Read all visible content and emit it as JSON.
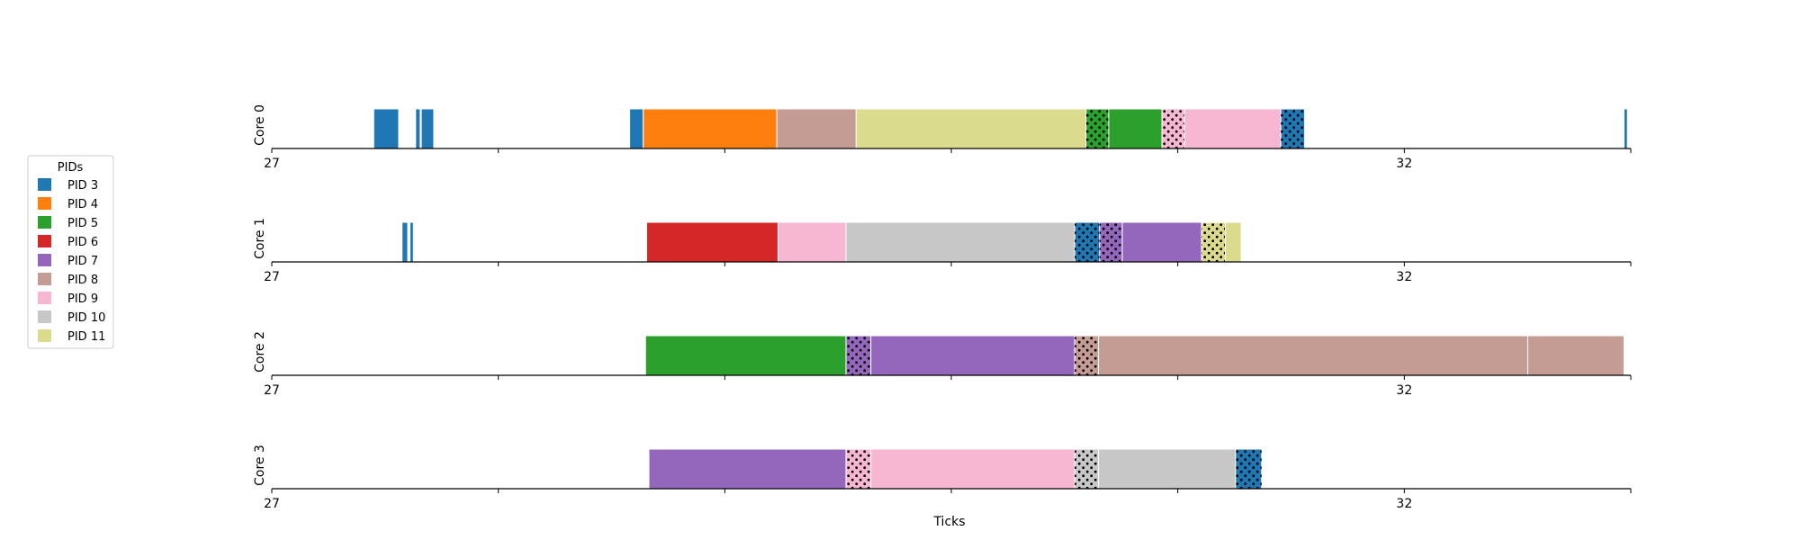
{
  "chart_data": {
    "type": "gantt",
    "xlabel": "Ticks",
    "xlim": [
      27,
      33
    ],
    "x_ticks": [
      27,
      32
    ],
    "x_tick_labels": [
      "27",
      "32"
    ],
    "grid": false,
    "legend": {
      "title": "PIDs",
      "placement": "left",
      "entries": [
        {
          "label": "PID 3",
          "color": "#1f77b4"
        },
        {
          "label": "PID 4",
          "color": "#ff7f0e"
        },
        {
          "label": "PID 5",
          "color": "#2ca02c"
        },
        {
          "label": "PID 6",
          "color": "#d62728"
        },
        {
          "label": "PID 7",
          "color": "#9467bd"
        },
        {
          "label": "PID 8",
          "color": "#c49c94"
        },
        {
          "label": "PID 9",
          "color": "#f7b6d2"
        },
        {
          "label": "PID 10",
          "color": "#c7c7c7"
        },
        {
          "label": "PID 11",
          "color": "#dbdb8d"
        }
      ]
    },
    "pid_colors": {
      "3": "#1f77b4",
      "4": "#ff7f0e",
      "5": "#2ca02c",
      "6": "#d62728",
      "7": "#9467bd",
      "8": "#c49c94",
      "9": "#f7b6d2",
      "10": "#c7c7c7",
      "11": "#dbdb8d"
    },
    "cores": [
      {
        "label": "Core 0",
        "segments": [
          {
            "pid": 3,
            "start": 27.45,
            "end": 27.56,
            "hatched": false
          },
          {
            "pid": 3,
            "start": 27.635,
            "end": 27.655,
            "hatched": false
          },
          {
            "pid": 3,
            "start": 27.66,
            "end": 27.715,
            "hatched": false
          },
          {
            "pid": 3,
            "start": 28.58,
            "end": 28.64,
            "hatched": false
          },
          {
            "pid": 4,
            "start": 28.64,
            "end": 29.23,
            "hatched": false
          },
          {
            "pid": 8,
            "start": 29.23,
            "end": 29.58,
            "hatched": false
          },
          {
            "pid": 11,
            "start": 29.58,
            "end": 30.595,
            "hatched": false
          },
          {
            "pid": 5,
            "start": 30.595,
            "end": 30.695,
            "hatched": true
          },
          {
            "pid": 5,
            "start": 30.695,
            "end": 30.93,
            "hatched": false
          },
          {
            "pid": 9,
            "start": 30.93,
            "end": 31.03,
            "hatched": true
          },
          {
            "pid": 9,
            "start": 31.03,
            "end": 31.455,
            "hatched": false
          },
          {
            "pid": 3,
            "start": 31.455,
            "end": 31.56,
            "hatched": true
          },
          {
            "pid": 3,
            "start": 32.97,
            "end": 32.985,
            "hatched": false
          }
        ]
      },
      {
        "label": "Core 1",
        "segments": [
          {
            "pid": 3,
            "start": 27.575,
            "end": 27.6,
            "hatched": false
          },
          {
            "pid": 3,
            "start": 27.61,
            "end": 27.625,
            "hatched": false
          },
          {
            "pid": 6,
            "start": 28.655,
            "end": 29.235,
            "hatched": false
          },
          {
            "pid": 9,
            "start": 29.235,
            "end": 29.535,
            "hatched": false
          },
          {
            "pid": 10,
            "start": 29.535,
            "end": 30.545,
            "hatched": false
          },
          {
            "pid": 3,
            "start": 30.545,
            "end": 30.655,
            "hatched": true
          },
          {
            "pid": 7,
            "start": 30.655,
            "end": 30.755,
            "hatched": true
          },
          {
            "pid": 7,
            "start": 30.755,
            "end": 31.105,
            "hatched": false
          },
          {
            "pid": 11,
            "start": 31.105,
            "end": 31.21,
            "hatched": true
          },
          {
            "pid": 11,
            "start": 31.21,
            "end": 31.28,
            "hatched": false
          }
        ]
      },
      {
        "label": "Core 2",
        "segments": [
          {
            "pid": 5,
            "start": 28.65,
            "end": 29.535,
            "hatched": false
          },
          {
            "pid": 7,
            "start": 29.535,
            "end": 29.645,
            "hatched": true
          },
          {
            "pid": 7,
            "start": 29.645,
            "end": 30.545,
            "hatched": false
          },
          {
            "pid": 8,
            "start": 30.545,
            "end": 30.65,
            "hatched": true
          },
          {
            "pid": 8,
            "start": 30.65,
            "end": 32.545,
            "hatched": false
          },
          {
            "pid": 8,
            "start": 32.545,
            "end": 32.97,
            "hatched": false
          }
        ]
      },
      {
        "label": "Core 3",
        "segments": [
          {
            "pid": 7,
            "start": 28.665,
            "end": 29.535,
            "hatched": false
          },
          {
            "pid": 9,
            "start": 29.535,
            "end": 29.645,
            "hatched": true
          },
          {
            "pid": 9,
            "start": 29.645,
            "end": 30.545,
            "hatched": false
          },
          {
            "pid": 10,
            "start": 30.545,
            "end": 30.65,
            "hatched": true
          },
          {
            "pid": 10,
            "start": 30.65,
            "end": 31.255,
            "hatched": false
          },
          {
            "pid": 3,
            "start": 31.255,
            "end": 31.37,
            "hatched": true
          }
        ]
      }
    ]
  }
}
